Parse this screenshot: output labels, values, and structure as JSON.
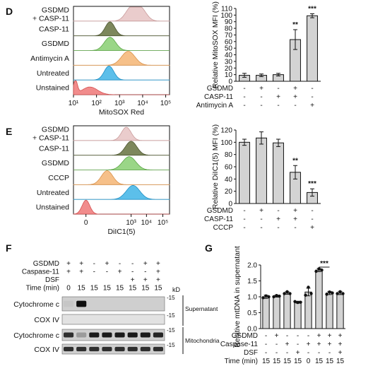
{
  "panels": {
    "D": {
      "label": "D",
      "flow": {
        "rows": [
          {
            "label": "GSDMD\n+ CASP-11",
            "color": "#e8c6c6",
            "stroke": "#c99b9b"
          },
          {
            "label": "CASP-11",
            "color": "#6f7a4a",
            "stroke": "#4e5632"
          },
          {
            "label": "GSDMD",
            "color": "#8fd27a",
            "stroke": "#5aa544"
          },
          {
            "label": "Antimycin A",
            "color": "#f5b97c",
            "stroke": "#d9914a"
          },
          {
            "label": "Untreated",
            "color": "#4ab8e8",
            "stroke": "#1f8fc4"
          },
          {
            "label": "Unstained",
            "color": "#f08080",
            "stroke": "#d45050"
          }
        ],
        "xticks": [
          "10¹",
          "10²",
          "10³",
          "10⁴",
          "10⁵"
        ],
        "xlabel": "MitoSOX Red"
      },
      "bar": {
        "ylabel": "Relative MitoSOX MFI (%)",
        "yticks": [
          "0",
          "10",
          "20",
          "30",
          "40",
          "50",
          "60",
          "70",
          "80",
          "90",
          "100",
          "110"
        ],
        "sig": [
          "",
          "",
          "",
          "**",
          "***"
        ],
        "conds": [
          [
            "GSDMD",
            "-",
            "+",
            "-",
            "+",
            "-"
          ],
          [
            "CASP-11",
            "-",
            "-",
            "+",
            "+",
            "-"
          ],
          [
            "Antimycin A",
            "-",
            "-",
            "-",
            "-",
            "+"
          ]
        ]
      }
    },
    "E": {
      "label": "E",
      "flow": {
        "rows": [
          {
            "label": "GSDMD\n+ CASP-11",
            "color": "#e8c6c6",
            "stroke": "#c99b9b"
          },
          {
            "label": "CASP-11",
            "color": "#6f7a4a",
            "stroke": "#4e5632"
          },
          {
            "label": "GSDMD",
            "color": "#8fd27a",
            "stroke": "#5aa544"
          },
          {
            "label": "CCCP",
            "color": "#f5b97c",
            "stroke": "#d9914a"
          },
          {
            "label": "Untreated",
            "color": "#4ab8e8",
            "stroke": "#1f8fc4"
          },
          {
            "label": "Unstained",
            "color": "#f08080",
            "stroke": "#d45050"
          }
        ],
        "xticks": [
          "0",
          "10³",
          "10⁴",
          "10⁵"
        ],
        "xlabel": "DiIC1(5)"
      },
      "bar": {
        "ylabel": "Relative DiIC1(5) MFI (%)",
        "yticks": [
          "0",
          "20",
          "40",
          "60",
          "80",
          "100",
          "120"
        ],
        "sig": [
          "",
          "",
          "",
          "**",
          "***"
        ],
        "conds": [
          [
            "GSDMD",
            "-",
            "+",
            "-",
            "+",
            "-"
          ],
          [
            "CASP-11",
            "-",
            "-",
            "+",
            "+",
            "-"
          ],
          [
            "CCCP",
            "-",
            "-",
            "-",
            "-",
            "+"
          ]
        ]
      }
    },
    "F": {
      "label": "F",
      "conds": [
        [
          "GSDMD",
          "+",
          "+",
          "-",
          "+",
          "-",
          "-",
          "+",
          "+"
        ],
        [
          "Caspase-11",
          "+",
          "+",
          "-",
          "-",
          "+",
          "-",
          "-",
          "+"
        ],
        [
          "DSF",
          "",
          "",
          "",
          "",
          "",
          "+",
          "+",
          "+"
        ],
        [
          "Time (min)",
          "0",
          "15",
          "15",
          "15",
          "15",
          "15",
          "15",
          "15"
        ]
      ],
      "kd": "kD",
      "blots": [
        {
          "label": "Cytochrome c",
          "marker": "-15"
        },
        {
          "label": "COX IV",
          "marker": "-15"
        },
        {
          "label": "Cytochrome c",
          "marker": "-15"
        },
        {
          "label": "COX IV",
          "marker": "-15"
        }
      ],
      "groups": [
        "Supernatant",
        "Mitochondria"
      ]
    },
    "G": {
      "label": "G",
      "ylabel": "Relative mtDNA in supernatant",
      "yticks": [
        "0.0",
        "0.5",
        "1.0",
        "1.5",
        "2.0"
      ],
      "sig": "***",
      "conds": [
        [
          "GSDMD",
          "-",
          "+",
          "-",
          "-",
          "-",
          "+",
          "+",
          "+"
        ],
        [
          "Caspase-11",
          "-",
          "-",
          "+",
          "-",
          "+",
          "+",
          "+",
          "+"
        ],
        [
          "DSF",
          "-",
          "-",
          "-",
          "+",
          "-",
          "-",
          "-",
          "+"
        ],
        [
          "Time (min)",
          "15",
          "15",
          "15",
          "15",
          "0",
          "15",
          "15",
          "15"
        ]
      ]
    }
  },
  "chart_data": [
    {
      "type": "bar",
      "ylabel": "Relative MitoSOX MFI (%)",
      "ylim": [
        0,
        110
      ],
      "categories": [
        "1",
        "2",
        "3",
        "4",
        "5"
      ],
      "values": [
        9,
        9,
        10,
        63,
        99
      ],
      "errors": [
        3,
        2,
        2,
        15,
        3
      ]
    },
    {
      "type": "bar",
      "ylabel": "Relative DiIC1(5) MFI (%)",
      "ylim": [
        0,
        120
      ],
      "categories": [
        "1",
        "2",
        "3",
        "4",
        "5"
      ],
      "values": [
        100,
        107,
        99,
        51,
        18
      ],
      "errors": [
        5,
        10,
        6,
        11,
        6
      ]
    },
    {
      "type": "bar",
      "ylabel": "Relative mtDNA in supernatant",
      "ylim": [
        0,
        2.0
      ],
      "categories": [
        "1",
        "2",
        "3",
        "4",
        "5",
        "6",
        "7",
        "8"
      ],
      "values": [
        1.0,
        1.02,
        1.12,
        0.83,
        1.15,
        1.84,
        1.12,
        1.12
      ],
      "errors": [
        0.05,
        0.03,
        0.04,
        0.03,
        0.12,
        0.05,
        0.05,
        0.05
      ]
    }
  ]
}
